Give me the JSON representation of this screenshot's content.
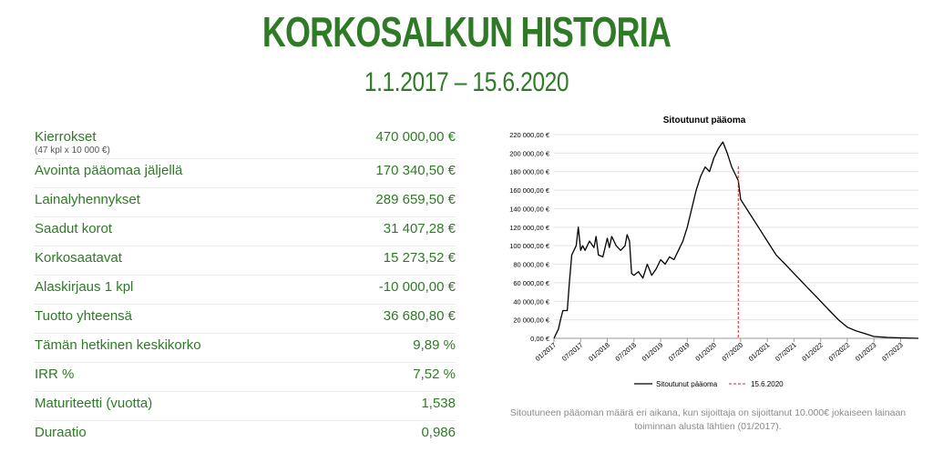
{
  "header": {
    "title": "KORKOSALKUN HISTORIA",
    "period": "1.1.2017 – 15.6.2020"
  },
  "stats": [
    {
      "label": "Kierrokset",
      "sublabel": "(47 kpl x 10 000 €)",
      "value": "470 000,00 €"
    },
    {
      "label": "Avointa pääomaa jäljellä",
      "value": "170 340,50 €"
    },
    {
      "label": "Lainalyhennykset",
      "value": "289 659,50 €"
    },
    {
      "label": "Saadut korot",
      "value": "31 407,28 €"
    },
    {
      "label": "Korkosaatavat",
      "value": "15 273,52 €"
    },
    {
      "label": "Alaskirjaus 1 kpl",
      "value": "-10 000,00 €"
    },
    {
      "label": "Tuotto yhteensä",
      "value": "36 680,80 €"
    },
    {
      "label": "Tämän hetkinen keskikorko",
      "value": "9,89 %"
    },
    {
      "label": "IRR %",
      "value": "7,52 %"
    },
    {
      "label": "Maturiteetti (vuotta)",
      "value": "1,538"
    },
    {
      "label": "Duraatio",
      "value": "0,986"
    }
  ],
  "caption": "Sitoutuneen pääoman määrä eri aikana, kun sijoittaja on sijoittanut 10.000€ jokaiseen lainaan toiminnan alusta lähtien (01/2017).",
  "colors": {
    "accent": "#2f7a26",
    "series": "#000000",
    "marker": "#e02020",
    "grid": "#e4e4e4"
  },
  "chart_data": {
    "type": "line",
    "title": "Sitoutunut pääoma",
    "xlabel": "",
    "ylabel": "",
    "ylim": [
      0,
      220000
    ],
    "yticks": [
      0,
      20000,
      40000,
      60000,
      80000,
      100000,
      120000,
      140000,
      160000,
      180000,
      200000,
      220000
    ],
    "ytick_labels": [
      "0,00 €",
      "20 000,00 €",
      "40 000,00 €",
      "60 000,00 €",
      "80 000,00 €",
      "100 000,00 €",
      "120 000,00 €",
      "140 000,00 €",
      "160 000,00 €",
      "180 000,00 €",
      "200 000,00 €",
      "220 000,00 €"
    ],
    "xlim": [
      "2017-01",
      "2023-11"
    ],
    "xtick_labels": [
      "01/2017",
      "07/2017",
      "01/2018",
      "07/2018",
      "01/2019",
      "07/2019",
      "01/2020",
      "07/2020",
      "01/2021",
      "07/2021",
      "01/2022",
      "07/2022",
      "01/2023",
      "07/2023"
    ],
    "xtick_dates": [
      "2017-01",
      "2017-07",
      "2018-01",
      "2018-07",
      "2019-01",
      "2019-07",
      "2020-01",
      "2020-07",
      "2021-01",
      "2021-07",
      "2022-01",
      "2022-07",
      "2023-01",
      "2023-07"
    ],
    "grid": true,
    "legend_position": "bottom",
    "series": [
      {
        "name": "Sitoutunut pääoma",
        "x": [
          "2017-01-01",
          "2017-02-01",
          "2017-02-15",
          "2017-03-01",
          "2017-04-01",
          "2017-04-15",
          "2017-05-01",
          "2017-06-01",
          "2017-06-15",
          "2017-07-01",
          "2017-07-15",
          "2017-08-01",
          "2017-09-01",
          "2017-10-01",
          "2017-10-15",
          "2017-11-01",
          "2017-12-01",
          "2018-01-01",
          "2018-01-15",
          "2018-02-01",
          "2018-03-01",
          "2018-04-01",
          "2018-05-01",
          "2018-05-15",
          "2018-06-01",
          "2018-06-15",
          "2018-07-01",
          "2018-08-01",
          "2018-09-01",
          "2018-10-01",
          "2018-11-01",
          "2018-12-01",
          "2019-01-01",
          "2019-02-01",
          "2019-03-01",
          "2019-04-01",
          "2019-05-01",
          "2019-06-01",
          "2019-07-01",
          "2019-08-01",
          "2019-09-01",
          "2019-10-01",
          "2019-11-01",
          "2019-12-01",
          "2020-01-01",
          "2020-02-01",
          "2020-03-01",
          "2020-04-01",
          "2020-05-01",
          "2020-06-15",
          "2020-07-01",
          "2020-09-01",
          "2020-11-01",
          "2021-01-01",
          "2021-03-01",
          "2021-05-01",
          "2021-07-01",
          "2021-09-01",
          "2021-11-01",
          "2022-01-01",
          "2022-03-01",
          "2022-05-01",
          "2022-07-01",
          "2022-09-01",
          "2022-11-01",
          "2023-01-01",
          "2023-04-01",
          "2023-07-01",
          "2023-11-01"
        ],
        "y": [
          0,
          10000,
          20000,
          30000,
          30000,
          60000,
          90000,
          100000,
          120000,
          95000,
          100000,
          95000,
          105000,
          98000,
          110000,
          90000,
          88000,
          108000,
          98000,
          110000,
          100000,
          95000,
          100000,
          112000,
          105000,
          70000,
          68000,
          72000,
          65000,
          80000,
          68000,
          75000,
          85000,
          80000,
          88000,
          85000,
          95000,
          105000,
          120000,
          140000,
          160000,
          175000,
          185000,
          180000,
          195000,
          205000,
          212000,
          200000,
          185000,
          170340,
          150000,
          135000,
          120000,
          105000,
          90000,
          80000,
          70000,
          60000,
          50000,
          40000,
          30000,
          20000,
          12000,
          8000,
          5000,
          2000,
          1000,
          500,
          0
        ]
      }
    ],
    "annotations": [
      {
        "label": "15.6.2020",
        "x": "2020-06-15",
        "style": "dashed"
      }
    ]
  }
}
